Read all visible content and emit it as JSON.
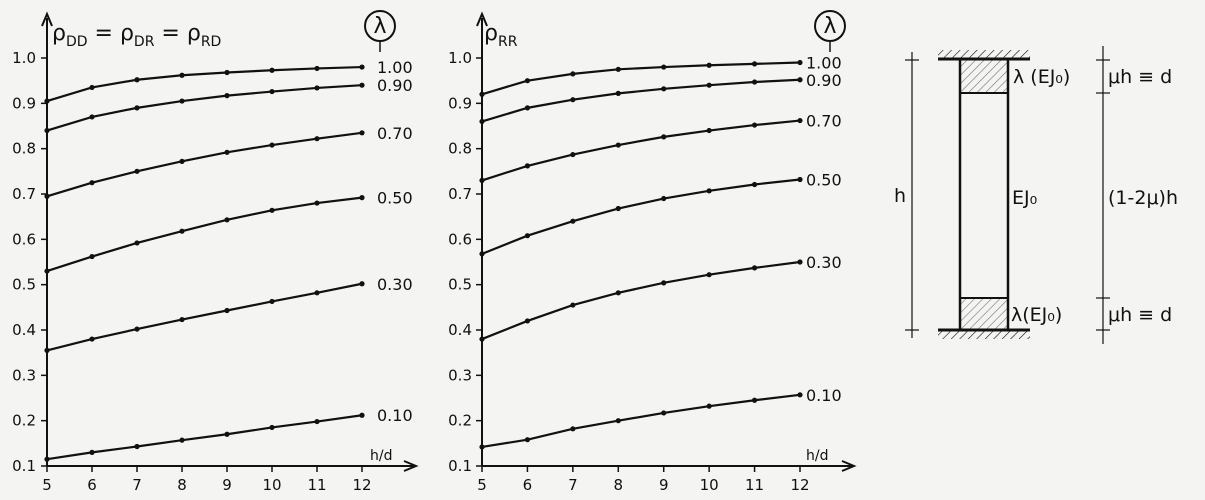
{
  "chart_data": [
    {
      "type": "line",
      "title_parts": [
        "ρ",
        "DD",
        " = ",
        "ρ",
        "DR",
        " = ",
        "ρ",
        "RD"
      ],
      "legend_symbol": "λ",
      "xlabel": "h/d",
      "ylabel": "",
      "xlim": [
        5,
        12
      ],
      "ylim": [
        0.1,
        1.0
      ],
      "x_ticks": [
        "5",
        "6",
        "7",
        "8",
        "9",
        "10",
        "11",
        "12"
      ],
      "y_ticks": [
        "0.1",
        "0.2",
        "0.3",
        "0.4",
        "0.5",
        "0.6",
        "0.7",
        "0.8",
        "0.9",
        "1.0"
      ],
      "x": [
        5,
        6,
        7,
        8,
        9,
        10,
        11,
        12
      ],
      "series": [
        {
          "name": "1.00",
          "values": [
            0.905,
            0.935,
            0.952,
            0.962,
            0.968,
            0.973,
            0.977,
            0.98
          ]
        },
        {
          "name": "0.90",
          "values": [
            0.84,
            0.87,
            0.89,
            0.905,
            0.917,
            0.926,
            0.934,
            0.94
          ]
        },
        {
          "name": "0.70",
          "values": [
            0.695,
            0.725,
            0.75,
            0.772,
            0.792,
            0.808,
            0.822,
            0.835
          ]
        },
        {
          "name": "0.50",
          "values": [
            0.53,
            0.562,
            0.592,
            0.618,
            0.643,
            0.664,
            0.68,
            0.692
          ]
        },
        {
          "name": "0.30",
          "values": [
            0.355,
            0.38,
            0.402,
            0.423,
            0.443,
            0.463,
            0.482,
            0.502
          ]
        },
        {
          "name": "0.10",
          "values": [
            0.115,
            0.13,
            0.143,
            0.157,
            0.17,
            0.185,
            0.198,
            0.212
          ]
        }
      ]
    },
    {
      "type": "line",
      "title_parts": [
        "ρ",
        "RR"
      ],
      "legend_symbol": "λ",
      "xlabel": "h/d",
      "ylabel": "",
      "xlim": [
        5,
        12
      ],
      "ylim": [
        0.1,
        1.0
      ],
      "x_ticks": [
        "5",
        "6",
        "7",
        "8",
        "9",
        "10",
        "11",
        "12"
      ],
      "y_ticks": [
        "0.1",
        "0.2",
        "0.3",
        "0.4",
        "0.5",
        "0.6",
        "0.7",
        "0.8",
        "0.9",
        "1.0"
      ],
      "x": [
        5,
        6,
        7,
        8,
        9,
        10,
        11,
        12
      ],
      "series": [
        {
          "name": "1.00",
          "values": [
            0.92,
            0.95,
            0.965,
            0.975,
            0.98,
            0.984,
            0.987,
            0.99
          ]
        },
        {
          "name": "0.90",
          "values": [
            0.86,
            0.89,
            0.908,
            0.922,
            0.932,
            0.94,
            0.947,
            0.952
          ]
        },
        {
          "name": "0.70",
          "values": [
            0.73,
            0.762,
            0.787,
            0.808,
            0.826,
            0.84,
            0.852,
            0.862
          ]
        },
        {
          "name": "0.50",
          "values": [
            0.568,
            0.608,
            0.64,
            0.668,
            0.69,
            0.707,
            0.721,
            0.732
          ]
        },
        {
          "name": "0.30",
          "values": [
            0.38,
            0.42,
            0.455,
            0.482,
            0.504,
            0.522,
            0.537,
            0.55
          ]
        },
        {
          "name": "0.10",
          "values": [
            0.142,
            0.158,
            0.182,
            0.2,
            0.217,
            0.232,
            0.245,
            0.257
          ]
        }
      ]
    }
  ],
  "diagram": {
    "label_h": "h",
    "label_top_stiff": "λ (EJ₀)",
    "label_mid_stiff": "EJ₀",
    "label_bottom_stiff": "λ(EJ₀)",
    "label_top_len": "μh ≡ d",
    "label_mid_len": "(1-2μ)h",
    "label_bottom_len": "μh ≡ d"
  }
}
